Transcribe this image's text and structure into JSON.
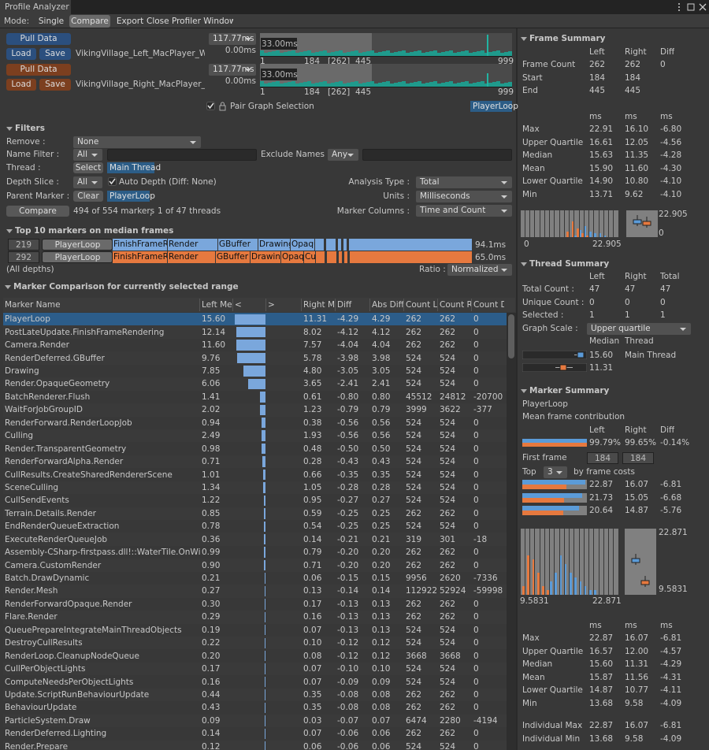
{
  "window": {
    "title": "Profile Analyzer"
  },
  "toolbar": {
    "mode_label": "Mode:",
    "tabs": [
      "Single",
      "Compare"
    ],
    "buttons": [
      "Export",
      "Close Profiler Window"
    ]
  },
  "captures": [
    {
      "pull": "Pull Data",
      "load": "Load",
      "save": "Save",
      "file": "VikingVillage_Left_MacPlayer_Wind",
      "range": "117.77ms",
      "floor": "0.00ms",
      "selection": "33.00ms",
      "axis": [
        "1",
        "184",
        "[262]",
        "445",
        "999"
      ]
    },
    {
      "pull": "Pull Data",
      "load": "Load",
      "save": "Save",
      "file": "VikingVillage_Right_MacPlayer_Win",
      "range": "117.77ms",
      "floor": "0.00ms",
      "selection": "33.00ms",
      "axis": [
        "1",
        "184",
        "[262]",
        "445",
        "999"
      ]
    }
  ],
  "pair_graph": {
    "label": "Pair Graph Selection",
    "marker": "PlayerLoop"
  },
  "filters": {
    "title": "Filters",
    "remove": {
      "label": "Remove :",
      "value": "None"
    },
    "name_filter": {
      "label": "Name Filter :",
      "value": "All"
    },
    "exclude_names": {
      "label": "Exclude Names :",
      "value": "Any"
    },
    "thread": {
      "label": "Thread :",
      "button": "Select",
      "value": "Main Thread"
    },
    "depth_slice": {
      "label": "Depth Slice :",
      "value": "All",
      "auto_depth": "Auto Depth (Diff: None)"
    },
    "analysis_type": {
      "label": "Analysis Type :",
      "value": "Total"
    },
    "parent_marker": {
      "label": "Parent Marker :",
      "button": "Clear",
      "value": "PlayerLoop"
    },
    "units": {
      "label": "Units :",
      "value": "Milliseconds"
    },
    "compare": "Compare",
    "markers": "494 of 554 markers",
    "separator": ",",
    "threads": "1 of 47 threads",
    "marker_columns": {
      "label": "Marker Columns :",
      "value": "Time and Count"
    }
  },
  "top10": {
    "title": "Top 10 markers on median frames",
    "rows": [
      {
        "frame": "219",
        "segments": [
          "PlayerLoop",
          "FinishFrameRe",
          "Render",
          "GBuffer",
          "Drawing",
          "Opaqu"
        ],
        "total": "94.1ms"
      },
      {
        "frame": "292",
        "segments": [
          "PlayerLoop",
          "FinishFrameR",
          "Render",
          "GBuffer",
          "Drawing",
          "Opaqu",
          "Cu"
        ],
        "total": "65.0ms"
      }
    ],
    "depth": "(All depths)",
    "ratio": {
      "label": "Ratio :",
      "value": "Normalized"
    }
  },
  "comparison": {
    "title": "Marker Comparison for currently selected range",
    "columns": [
      "Marker Name",
      "Left Me",
      "<",
      ">",
      "Right M",
      "Diff",
      "Abs Diff",
      "Count L",
      "Count R",
      "Count D"
    ],
    "rows": [
      [
        "PlayerLoop",
        "15.60",
        "11.31",
        "-4.29",
        "4.29",
        "262",
        "262",
        "0"
      ],
      [
        "PostLateUpdate.FinishFrameRendering",
        "12.14",
        "8.02",
        "-4.12",
        "4.12",
        "262",
        "262",
        "0"
      ],
      [
        "Camera.Render",
        "11.60",
        "7.57",
        "-4.04",
        "4.04",
        "262",
        "262",
        "0"
      ],
      [
        "RenderDeferred.GBuffer",
        "9.76",
        "5.78",
        "-3.98",
        "3.98",
        "524",
        "524",
        "0"
      ],
      [
        "Drawing",
        "7.85",
        "4.80",
        "-3.05",
        "3.05",
        "524",
        "524",
        "0"
      ],
      [
        "Render.OpaqueGeometry",
        "6.06",
        "3.65",
        "-2.41",
        "2.41",
        "524",
        "524",
        "0"
      ],
      [
        "BatchRenderer.Flush",
        "1.41",
        "0.61",
        "-0.80",
        "0.80",
        "45512",
        "24812",
        "-20700"
      ],
      [
        "WaitForJobGroupID",
        "2.02",
        "1.23",
        "-0.79",
        "0.79",
        "3999",
        "3622",
        "-377"
      ],
      [
        "RenderForward.RenderLoopJob",
        "0.94",
        "0.38",
        "-0.56",
        "0.56",
        "524",
        "524",
        "0"
      ],
      [
        "Culling",
        "2.49",
        "1.93",
        "-0.56",
        "0.56",
        "524",
        "524",
        "0"
      ],
      [
        "Render.TransparentGeometry",
        "0.98",
        "0.48",
        "-0.50",
        "0.50",
        "524",
        "524",
        "0"
      ],
      [
        "RenderForwardAlpha.Render",
        "0.71",
        "0.28",
        "-0.43",
        "0.43",
        "524",
        "524",
        "0"
      ],
      [
        "CullResults.CreateSharedRendererScene",
        "1.01",
        "0.66",
        "-0.35",
        "0.35",
        "524",
        "524",
        "0"
      ],
      [
        "SceneCulling",
        "1.34",
        "1.05",
        "-0.28",
        "0.28",
        "524",
        "524",
        "0"
      ],
      [
        "CullSendEvents",
        "1.22",
        "0.95",
        "-0.27",
        "0.27",
        "524",
        "524",
        "0"
      ],
      [
        "Terrain.Details.Render",
        "0.85",
        "0.59",
        "-0.25",
        "0.25",
        "262",
        "262",
        "0"
      ],
      [
        "EndRenderQueueExtraction",
        "0.78",
        "0.54",
        "-0.25",
        "0.25",
        "524",
        "524",
        "0"
      ],
      [
        "ExecuteRenderQueueJob",
        "0.36",
        "0.14",
        "-0.21",
        "0.21",
        "319",
        "301",
        "-18"
      ],
      [
        "Assembly-CSharp-firstpass.dll!::WaterTile.OnWillRend",
        "0.99",
        "0.79",
        "-0.20",
        "0.20",
        "262",
        "262",
        "0"
      ],
      [
        "Camera.CustomRender",
        "0.90",
        "0.71",
        "-0.20",
        "0.20",
        "262",
        "262",
        "0"
      ],
      [
        "Batch.DrawDynamic",
        "0.21",
        "0.06",
        "-0.15",
        "0.15",
        "9956",
        "2620",
        "-7336"
      ],
      [
        "Render.Mesh",
        "0.27",
        "0.13",
        "-0.14",
        "0.14",
        "112922",
        "52924",
        "-59998"
      ],
      [
        "RenderForwardOpaque.Render",
        "0.30",
        "0.17",
        "-0.13",
        "0.13",
        "262",
        "262",
        "0"
      ],
      [
        "Flare.Render",
        "0.29",
        "0.16",
        "-0.13",
        "0.13",
        "262",
        "262",
        "0"
      ],
      [
        "QueuePrepareIntegrateMainThreadObjects",
        "0.19",
        "0.07",
        "-0.13",
        "0.13",
        "524",
        "524",
        "0"
      ],
      [
        "DestroyCullResults",
        "0.22",
        "0.10",
        "-0.12",
        "0.12",
        "524",
        "524",
        "0"
      ],
      [
        "RenderLoop.CleanupNodeQueue",
        "0.20",
        "0.08",
        "-0.12",
        "0.12",
        "3668",
        "3668",
        "0"
      ],
      [
        "CullPerObjectLights",
        "0.17",
        "0.07",
        "-0.10",
        "0.10",
        "524",
        "524",
        "0"
      ],
      [
        "ComputeNeedsPerObjectLights",
        "0.16",
        "0.07",
        "-0.09",
        "0.09",
        "524",
        "524",
        "0"
      ],
      [
        "Update.ScriptRunBehaviourUpdate",
        "0.44",
        "0.35",
        "-0.08",
        "0.08",
        "262",
        "262",
        "0"
      ],
      [
        "BehaviourUpdate",
        "0.43",
        "0.35",
        "-0.08",
        "0.08",
        "262",
        "262",
        "0"
      ],
      [
        "ParticleSystem.Draw",
        "0.09",
        "0.03",
        "-0.07",
        "0.07",
        "6474",
        "2280",
        "-4194"
      ],
      [
        "RenderDeferred.Lighting",
        "0.14",
        "0.07",
        "-0.06",
        "0.06",
        "262",
        "262",
        "0"
      ],
      [
        "Render.Prepare",
        "0.12",
        "0.06",
        "-0.06",
        "0.06",
        "524",
        "524",
        "0"
      ]
    ]
  },
  "frame_summary": {
    "title": "Frame Summary",
    "columns": [
      "Left",
      "Right",
      "Diff"
    ],
    "rows": [
      [
        "Frame Count",
        "262",
        "262",
        "0"
      ],
      [
        "Start",
        "184",
        "184"
      ],
      [
        "End",
        "445",
        "445"
      ]
    ],
    "units": [
      "ms",
      "ms",
      "ms"
    ],
    "stats": [
      [
        "Max",
        "22.91",
        "16.10",
        "-6.80"
      ],
      [
        "Upper Quartile",
        "16.61",
        "12.05",
        "-4.56"
      ],
      [
        "Median",
        "15.63",
        "11.35",
        "-4.28"
      ],
      [
        "Mean",
        "15.90",
        "11.60",
        "-4.30"
      ],
      [
        "Lower Quartile",
        "14.90",
        "10.80",
        "-4.10"
      ],
      [
        "Min",
        "13.71",
        "9.62",
        "-4.10"
      ]
    ],
    "histogram": {
      "min": "0",
      "max": "22.905",
      "left": [
        0,
        0,
        0,
        0,
        0,
        0,
        0,
        0,
        0,
        0,
        0,
        1,
        4,
        6,
        3,
        2,
        2,
        1,
        0,
        0
      ],
      "right": [
        0,
        0,
        0,
        0,
        0,
        0,
        0,
        0,
        0,
        3,
        9,
        5,
        2,
        1,
        0,
        0,
        0,
        0,
        0,
        0
      ]
    },
    "boxplot": {
      "max": "22.905",
      "min": "0"
    }
  },
  "thread_summary": {
    "title": "Thread Summary",
    "columns": [
      "Left",
      "Right",
      "Total"
    ],
    "rows": [
      [
        "Total Count :",
        "47",
        "47",
        "47"
      ],
      [
        "Unique Count :",
        "0",
        "0",
        "0"
      ],
      [
        "Selected :",
        "1",
        "1",
        "1"
      ]
    ],
    "graph_scale": {
      "label": "Graph Scale :",
      "value": "Upper quartile"
    },
    "list_columns": [
      "Median",
      "Thread"
    ],
    "threads": [
      {
        "median": "15.60",
        "name": "Main Thread"
      },
      {
        "median": "11.31"
      }
    ]
  },
  "marker_summary": {
    "title": "Marker Summary",
    "marker": "PlayerLoop",
    "contribution_label": "Mean frame contribution",
    "columns": [
      "Left",
      "Right",
      "Diff"
    ],
    "contribution": [
      "99.79%",
      "99.65%",
      "-0.14%"
    ],
    "first_frame": {
      "label": "First frame",
      "values": [
        "184",
        "184"
      ]
    },
    "top": {
      "label": "Top",
      "value": "3",
      "suffix": "by frame costs",
      "rows": [
        [
          "22.87",
          "16.07",
          "-6.81"
        ],
        [
          "21.73",
          "15.05",
          "-6.68"
        ],
        [
          "20.64",
          "14.87",
          "-5.76"
        ]
      ]
    },
    "histogram": {
      "min": "9.5831",
      "max": "22.871",
      "left": [
        0,
        0,
        0,
        0,
        0,
        0,
        3,
        5,
        9,
        7,
        5,
        4,
        3,
        2,
        1,
        1,
        0,
        0,
        0,
        0
      ],
      "right": [
        2,
        9,
        8,
        5,
        2,
        1,
        0,
        0,
        0,
        0,
        0,
        0,
        0,
        0,
        0,
        0,
        0,
        0,
        0,
        0
      ]
    },
    "boxplot": {
      "max": "22.871",
      "min": "9.5831"
    },
    "units": [
      "ms",
      "ms",
      "ms"
    ],
    "stats": [
      [
        "Max",
        "22.87",
        "16.07",
        "-6.81"
      ],
      [
        "Upper Quartile",
        "16.57",
        "12.00",
        "-4.57"
      ],
      [
        "Median",
        "15.60",
        "11.31",
        "-4.29"
      ],
      [
        "Mean",
        "15.87",
        "11.56",
        "-4.31"
      ],
      [
        "Lower Quartile",
        "14.87",
        "10.77",
        "-4.11"
      ],
      [
        "Min",
        "13.68",
        "9.58",
        "-4.09"
      ]
    ],
    "individual": [
      [
        "Individual Max",
        "22.87",
        "16.07",
        "-6.81"
      ],
      [
        "Individual Min",
        "13.68",
        "9.58",
        "-4.09"
      ]
    ]
  }
}
